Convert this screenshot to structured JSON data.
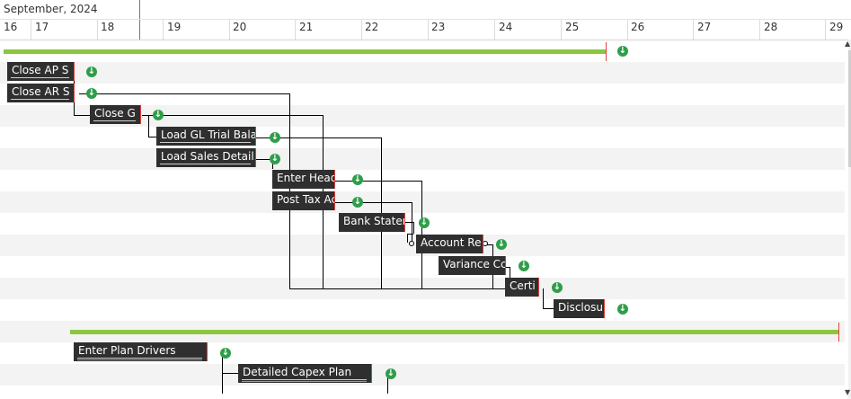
{
  "header": {
    "month_label": "September, 2024",
    "days": [
      "16",
      "17",
      "18",
      "19",
      "20",
      "21",
      "22",
      "23",
      "24",
      "25",
      "26",
      "27",
      "28",
      "29"
    ]
  },
  "tasks": [
    {
      "id": "close_ap",
      "label": "Close AP S"
    },
    {
      "id": "close_ar",
      "label": "Close AR S"
    },
    {
      "id": "close_gl",
      "label": "Close G"
    },
    {
      "id": "load_gl_trial",
      "label": "Load GL Trial Bala"
    },
    {
      "id": "load_sales",
      "label": "Load Sales Detail"
    },
    {
      "id": "enter_head",
      "label": "Enter Head"
    },
    {
      "id": "post_tax",
      "label": "Post Tax Ac"
    },
    {
      "id": "bank_state",
      "label": "Bank Stater"
    },
    {
      "id": "account_re",
      "label": "Account Re"
    },
    {
      "id": "variance",
      "label": "Variance Cc"
    },
    {
      "id": "certi",
      "label": "Certi"
    },
    {
      "id": "disclosu",
      "label": "Disclosu"
    },
    {
      "id": "enter_plan",
      "label": "Enter Plan Drivers"
    },
    {
      "id": "capex",
      "label": "Detailed Capex Plan"
    }
  ],
  "icons": {
    "download": "download-icon"
  },
  "colors": {
    "summary": "#8cc63f",
    "task": "#2f2f2f",
    "icon": "#2e9e4a",
    "marker": "#e0403a"
  }
}
